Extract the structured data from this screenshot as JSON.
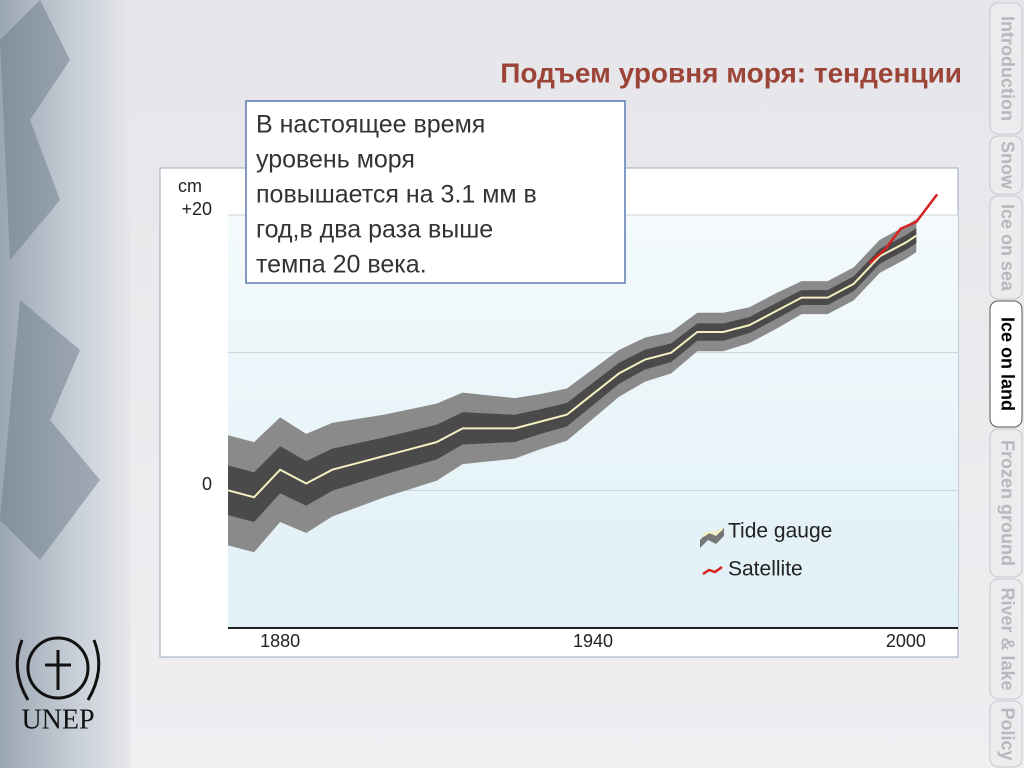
{
  "slide_title": "Подъем уровня моря: тенденции",
  "note_lines": [
    "В настоящее время",
    "уровень моря",
    "повышается на 3.1 мм в",
    "год,в два раза выше",
    "темпа 20 века."
  ],
  "logo_text": "UNEP",
  "tabs": [
    "Introduction",
    "Snow",
    "Ice on sea",
    "Ice on land",
    "Frozen ground",
    "River & lake",
    "Policy"
  ],
  "active_tab": 3,
  "chart_data": {
    "type": "line",
    "y_unit": "cm",
    "xlim": [
      1870,
      2010
    ],
    "ylim": [
      -10,
      20
    ],
    "xticks": [
      1880,
      1940,
      2000
    ],
    "yticks": [
      0,
      {
        "value": 20,
        "label": "+20"
      }
    ],
    "gridlines": [
      0,
      10,
      20
    ],
    "legend": "lower right",
    "series": [
      {
        "name": "Tide gauge",
        "color": "#f4f0c0",
        "band_color": "#4a4a4a",
        "x": [
          1870,
          1875,
          1880,
          1885,
          1890,
          1895,
          1900,
          1905,
          1910,
          1915,
          1920,
          1925,
          1930,
          1935,
          1940,
          1945,
          1950,
          1955,
          1960,
          1965,
          1970,
          1975,
          1980,
          1985,
          1990,
          1995,
          2000,
          2002
        ],
        "values": [
          0,
          -0.5,
          1.5,
          0.5,
          1.5,
          2,
          2.5,
          3,
          3.5,
          4.5,
          4.5,
          4.5,
          5,
          5.5,
          7,
          8.5,
          9.5,
          10,
          11.5,
          11.5,
          12,
          13,
          14,
          14,
          15,
          17,
          18,
          18.5
        ],
        "uncertainty": [
          4,
          4,
          3.8,
          3.6,
          3.4,
          3.2,
          3,
          2.9,
          2.8,
          2.6,
          2.4,
          2.2,
          2,
          1.9,
          1.8,
          1.7,
          1.6,
          1.5,
          1.4,
          1.4,
          1.3,
          1.3,
          1.2,
          1.2,
          1.2,
          1.2,
          1.2,
          1.2
        ]
      },
      {
        "name": "Satellite",
        "color": "#d42020",
        "x": [
          1993,
          1996,
          1999,
          2002,
          2004,
          2006
        ],
        "values": [
          16.5,
          17.5,
          19,
          19.5,
          20.5,
          21.5
        ]
      }
    ]
  }
}
